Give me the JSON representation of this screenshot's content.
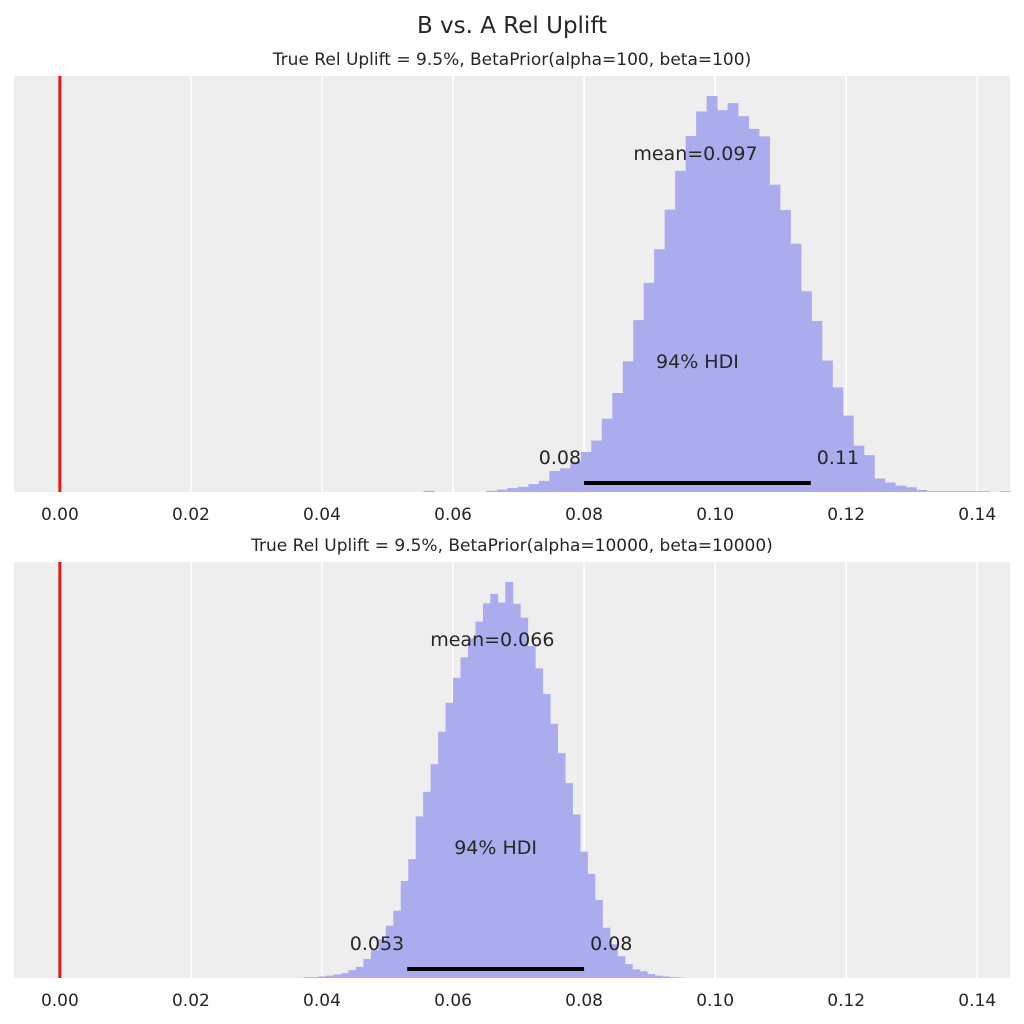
{
  "figure": {
    "suptitle": "B vs. A Rel Uplift",
    "colors": {
      "panel_background": "#eeeeee",
      "grid": "#ffffff",
      "histogram": "#aaaced",
      "reference_line": "#e61919",
      "hdi_bar": "#000000",
      "text": "#262626"
    }
  },
  "chart_data": [
    {
      "type": "histogram",
      "title": "True Rel Uplift = 9.5%, BetaPrior(alpha=100, beta=100)",
      "xlim": [
        -0.007,
        0.145
      ],
      "xticks": [
        0.0,
        0.02,
        0.04,
        0.06,
        0.08,
        0.1,
        0.12,
        0.14
      ],
      "xtick_labels": [
        "0.00",
        "0.02",
        "0.04",
        "0.06",
        "0.08",
        "0.10",
        "0.12",
        "0.14"
      ],
      "y_axis_visible": false,
      "grid": "vertical",
      "reference_line_x": 0.0,
      "bins": {
        "start": 0.0555,
        "width": 0.0016,
        "relative_heights": [
          0.003,
          0,
          0,
          0,
          0,
          0,
          0.003,
          0.006,
          0.01,
          0.013,
          0.02,
          0.028,
          0.053,
          0.06,
          0.077,
          0.101,
          0.13,
          0.185,
          0.25,
          0.33,
          0.434,
          0.528,
          0.613,
          0.713,
          0.811,
          0.899,
          0.961,
          1.0,
          0.964,
          0.982,
          0.949,
          0.917,
          0.898,
          0.776,
          0.712,
          0.627,
          0.507,
          0.432,
          0.332,
          0.264,
          0.193,
          0.117,
          0.093,
          0.034,
          0.024,
          0.016,
          0.012,
          0.005,
          0.002,
          0.002,
          0.002,
          0.002,
          0.002,
          0.002,
          0,
          0.002
        ]
      },
      "mean": 0.097,
      "mean_label": "mean=0.097",
      "hdi": {
        "label": "94% HDI",
        "low": 0.08,
        "high": 0.1146,
        "low_label": "0.08",
        "high_label": "0.11"
      }
    },
    {
      "type": "histogram",
      "title": "True Rel Uplift = 9.5%, BetaPrior(alpha=10000, beta=10000)",
      "xlim": [
        -0.007,
        0.145
      ],
      "xticks": [
        0.0,
        0.02,
        0.04,
        0.06,
        0.08,
        0.1,
        0.12,
        0.14
      ],
      "xtick_labels": [
        "0.00",
        "0.02",
        "0.04",
        "0.06",
        "0.08",
        "0.10",
        "0.12",
        "0.14"
      ],
      "y_axis_visible": false,
      "grid": "vertical",
      "reference_line_x": 0.0,
      "bins": {
        "start": 0.0372,
        "width": 0.00114,
        "relative_heights": [
          0.002,
          0.002,
          0.004,
          0.006,
          0.009,
          0.012,
          0.02,
          0.028,
          0.048,
          0.07,
          0.098,
          0.132,
          0.17,
          0.245,
          0.3,
          0.408,
          0.47,
          0.54,
          0.622,
          0.695,
          0.758,
          0.81,
          0.858,
          0.9,
          0.946,
          0.97,
          0.948,
          1.0,
          0.945,
          0.91,
          0.838,
          0.782,
          0.717,
          0.642,
          0.568,
          0.492,
          0.413,
          0.319,
          0.263,
          0.197,
          0.127,
          0.085,
          0.055,
          0.035,
          0.022,
          0.017,
          0.01,
          0.006,
          0.004,
          0.002,
          0.001
        ]
      },
      "mean": 0.066,
      "mean_label": "mean=0.066",
      "hdi": {
        "label": "94% HDI",
        "low": 0.053,
        "high": 0.08,
        "low_label": "0.053",
        "high_label": "0.08"
      }
    }
  ]
}
